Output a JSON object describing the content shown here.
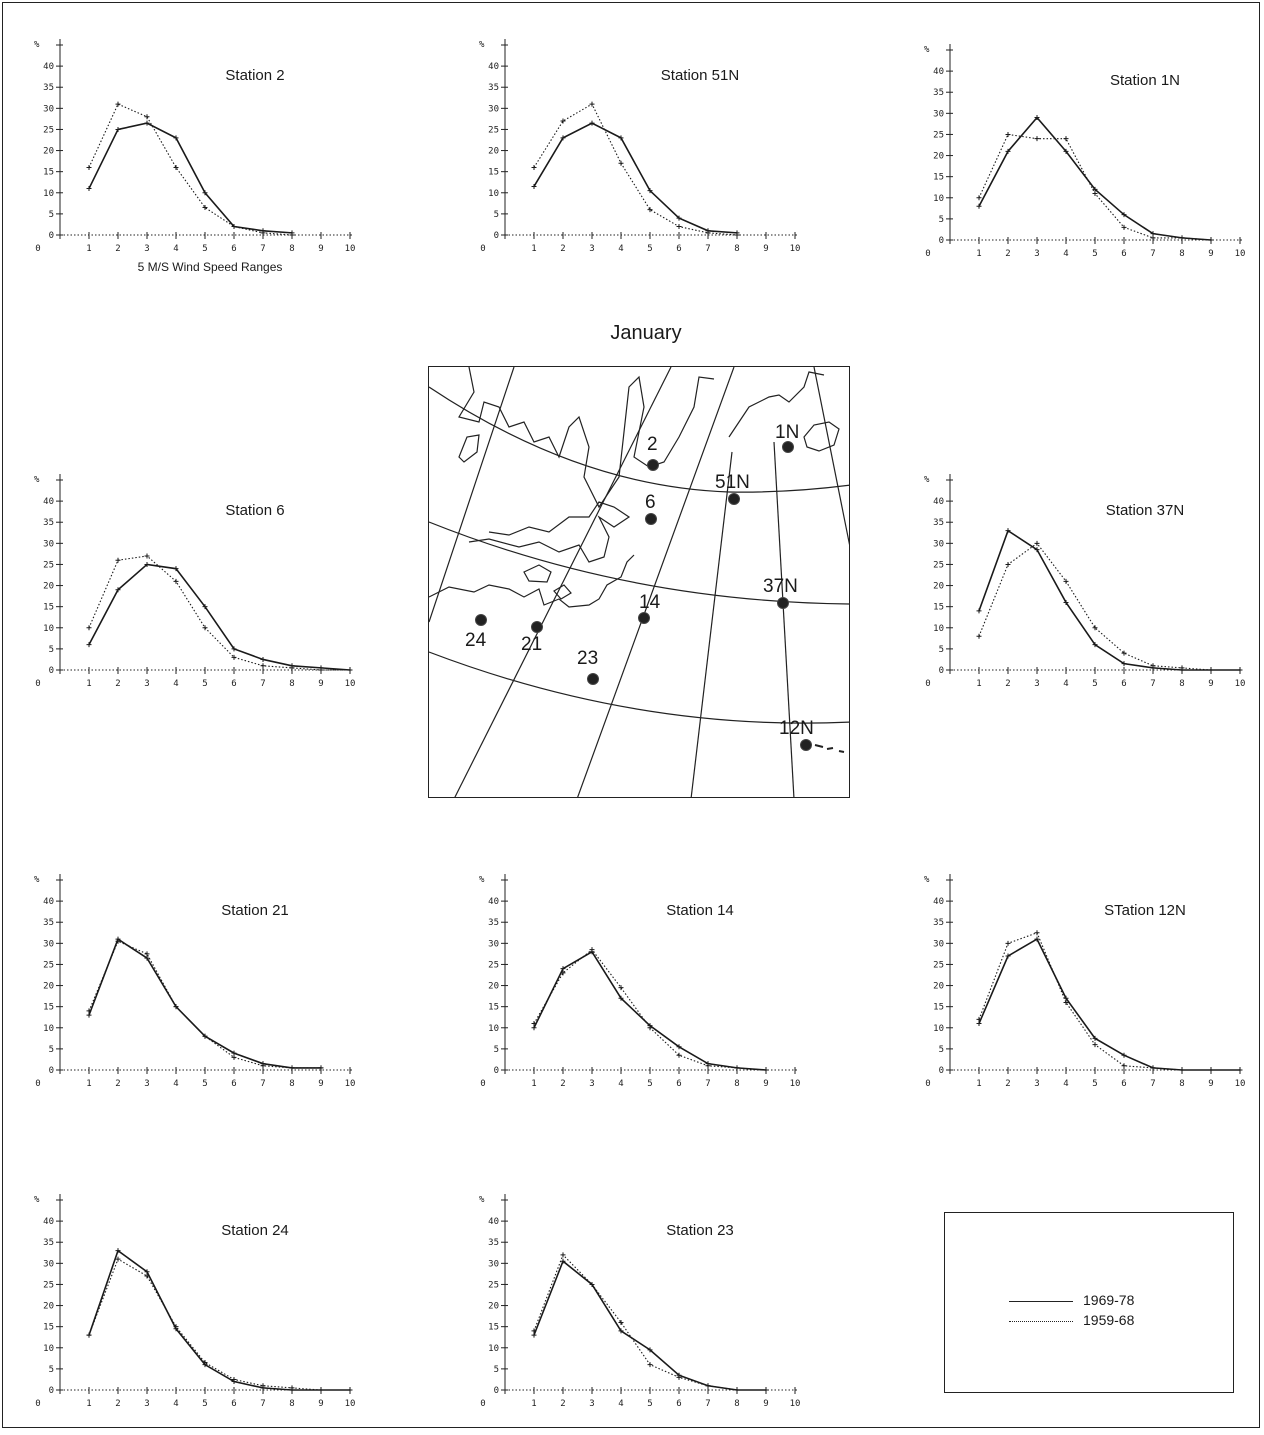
{
  "chart_data": {
    "type": "line",
    "title": "January",
    "xlabel": "5 M/S Wind Speed Ranges",
    "ylabel": "%",
    "ylim": [
      0,
      45
    ],
    "xlim": [
      0,
      10
    ],
    "yticks": [
      0,
      5,
      10,
      15,
      20,
      25,
      30,
      35,
      40,
      45
    ],
    "xticks": [
      0,
      1,
      2,
      3,
      4,
      5,
      6,
      7,
      8,
      9,
      10
    ],
    "legend": {
      "placement": "bottom-right",
      "entries": [
        {
          "label": "1969-78",
          "style": "solid"
        },
        {
          "label": "1959-68",
          "style": "dotted"
        }
      ]
    },
    "panels": [
      {
        "id": "station-2",
        "title": "Station 2",
        "x": [
          1,
          2,
          3,
          4,
          5,
          6,
          7,
          8
        ],
        "series": [
          {
            "name": "1969-78",
            "values": [
              11,
              25,
              26.5,
              23,
              10,
              2,
              1,
              0.5
            ]
          },
          {
            "name": "1959-68",
            "values": [
              16,
              31,
              28,
              16,
              6.5,
              2,
              0.5,
              0
            ]
          }
        ]
      },
      {
        "id": "station-51n",
        "title": "Station 51N",
        "x": [
          1,
          2,
          3,
          4,
          5,
          6,
          7,
          8
        ],
        "series": [
          {
            "name": "1969-78",
            "values": [
              11.5,
              23,
              26.5,
              23,
              10.5,
              4,
              1,
              0.5
            ]
          },
          {
            "name": "1959-68",
            "values": [
              16,
              27,
              31,
              17,
              6,
              2,
              0.5,
              0
            ]
          }
        ]
      },
      {
        "id": "station-1n",
        "title": "Station 1N",
        "x": [
          1,
          2,
          3,
          4,
          5,
          6,
          7,
          8,
          9
        ],
        "series": [
          {
            "name": "1969-78",
            "values": [
              8,
              21,
              29,
              21,
              12,
              6,
              1.5,
              0.5,
              0
            ]
          },
          {
            "name": "1959-68",
            "values": [
              10,
              25,
              24,
              24,
              11,
              3,
              0.5,
              0.5,
              0
            ]
          }
        ]
      },
      {
        "id": "station-6",
        "title": "Station 6",
        "x": [
          1,
          2,
          3,
          4,
          5,
          6,
          7,
          8,
          9,
          10
        ],
        "series": [
          {
            "name": "1969-78",
            "values": [
              6,
              19,
              25,
              24,
              15,
              5,
              2.5,
              1,
              0.5,
              0
            ]
          },
          {
            "name": "1959-68",
            "values": [
              10,
              26,
              27,
              21,
              10,
              3,
              1,
              0.5,
              0,
              0
            ]
          }
        ]
      },
      {
        "id": "station-37n",
        "title": "Station 37N",
        "x": [
          1,
          2,
          3,
          4,
          5,
          6,
          7,
          8,
          9,
          10
        ],
        "series": [
          {
            "name": "1969-78",
            "values": [
              14,
              33,
              28.5,
              16,
              6,
              1.5,
              0.5,
              0,
              0,
              0
            ]
          },
          {
            "name": "1959-68",
            "values": [
              8,
              25,
              30,
              21,
              10,
              4,
              1,
              0.5,
              0,
              0
            ]
          }
        ]
      },
      {
        "id": "station-21",
        "title": "Station 21",
        "x": [
          1,
          2,
          3,
          4,
          5,
          6,
          7,
          8,
          9
        ],
        "series": [
          {
            "name": "1969-78",
            "values": [
              13,
              31,
              26.5,
              15,
              8,
              4,
              1.5,
              0.5,
              0.5
            ]
          },
          {
            "name": "1959-68",
            "values": [
              14,
              30.5,
              27.5,
              15,
              8,
              3,
              1,
              0.5,
              0.5
            ]
          }
        ]
      },
      {
        "id": "station-14",
        "title": "Station 14",
        "x": [
          1,
          2,
          3,
          4,
          5,
          6,
          7,
          8,
          9
        ],
        "series": [
          {
            "name": "1969-78",
            "values": [
              10,
              24,
              28,
              17,
              10.5,
              5.5,
              1.5,
              0.5,
              0
            ]
          },
          {
            "name": "1959-68",
            "values": [
              11,
              23,
              28.5,
              19.5,
              10,
              3.5,
              1,
              0.5,
              0
            ]
          }
        ]
      },
      {
        "id": "station-12n",
        "title": "STation 12N",
        "x": [
          1,
          2,
          3,
          4,
          5,
          6,
          7,
          8,
          9,
          10
        ],
        "series": [
          {
            "name": "1969-78",
            "values": [
              11,
              27,
              31,
              17,
              7.5,
              3.5,
              0.5,
              0,
              0,
              0
            ]
          },
          {
            "name": "1959-68",
            "values": [
              12,
              30,
              32.5,
              16,
              6,
              1,
              0.5,
              0,
              0,
              0
            ]
          }
        ]
      },
      {
        "id": "station-24",
        "title": "Station 24",
        "x": [
          1,
          2,
          3,
          4,
          5,
          6,
          7,
          8,
          9,
          10
        ],
        "series": [
          {
            "name": "1969-78",
            "values": [
              13,
              33,
              28,
              14.5,
              6,
              2,
              0.5,
              0,
              0,
              0
            ]
          },
          {
            "name": "1959-68",
            "values": [
              13,
              31,
              27,
              15,
              6.5,
              2.5,
              1,
              0.5,
              0,
              0
            ]
          }
        ]
      },
      {
        "id": "station-23",
        "title": "Station 23",
        "x": [
          1,
          2,
          3,
          4,
          5,
          6,
          7,
          8,
          9
        ],
        "series": [
          {
            "name": "1969-78",
            "values": [
              13,
              30.5,
              25,
              14,
              9.5,
              3.5,
              1,
              0,
              0
            ]
          },
          {
            "name": "1959-68",
            "values": [
              14,
              32,
              25,
              16,
              6,
              3,
              1,
              0,
              0
            ]
          }
        ]
      }
    ]
  },
  "map": {
    "stations": [
      {
        "id": "2",
        "label": "2"
      },
      {
        "id": "1n",
        "label": "1N"
      },
      {
        "id": "51n",
        "label": "51N"
      },
      {
        "id": "6",
        "label": "6"
      },
      {
        "id": "37n",
        "label": "37N"
      },
      {
        "id": "14",
        "label": "14"
      },
      {
        "id": "24",
        "label": "24"
      },
      {
        "id": "21",
        "label": "21"
      },
      {
        "id": "23",
        "label": "23"
      },
      {
        "id": "12n",
        "label": "12N"
      }
    ]
  }
}
